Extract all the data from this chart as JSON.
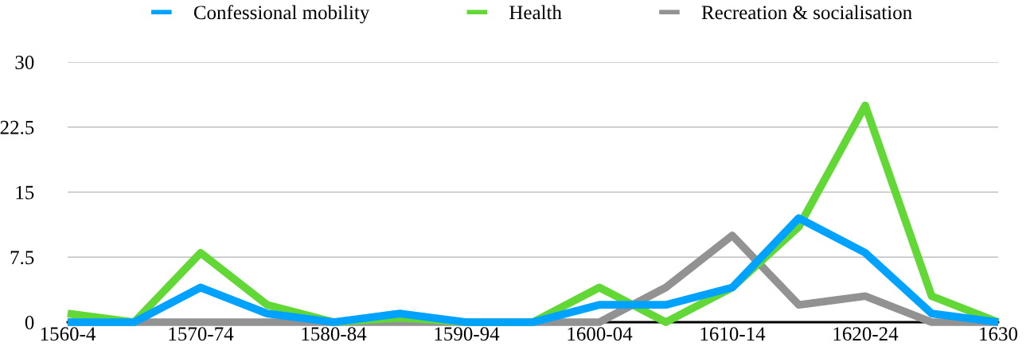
{
  "chart_data": {
    "type": "line",
    "categories": [
      "1560-4",
      null,
      "1570-74",
      null,
      "1580-84",
      null,
      "1590-94",
      null,
      "1600-04",
      null,
      "1610-14",
      null,
      "1620-24",
      null,
      "1630"
    ],
    "series": [
      {
        "name": "Confessional mobility",
        "color": "#00a2ff",
        "values": [
          0,
          0,
          4,
          1,
          0,
          1,
          0,
          0,
          2,
          2,
          4,
          12,
          8,
          1,
          0
        ]
      },
      {
        "name": "Health",
        "color": "#61d836",
        "values": [
          1,
          0,
          8,
          2,
          0,
          0.5,
          0,
          0,
          4,
          0,
          4,
          11,
          25,
          3,
          0
        ]
      },
      {
        "name": "Recreation & socialisation",
        "color": "#929292",
        "values": [
          0,
          0,
          0,
          0,
          0,
          0,
          0,
          0,
          0,
          4,
          10,
          2,
          3,
          0,
          0
        ]
      }
    ],
    "ylim": [
      0,
      30
    ],
    "yticks": [
      0,
      7.5,
      15,
      22.5,
      30
    ],
    "grid": "y",
    "legend": "top",
    "marker": "none",
    "line_style": "solid"
  }
}
